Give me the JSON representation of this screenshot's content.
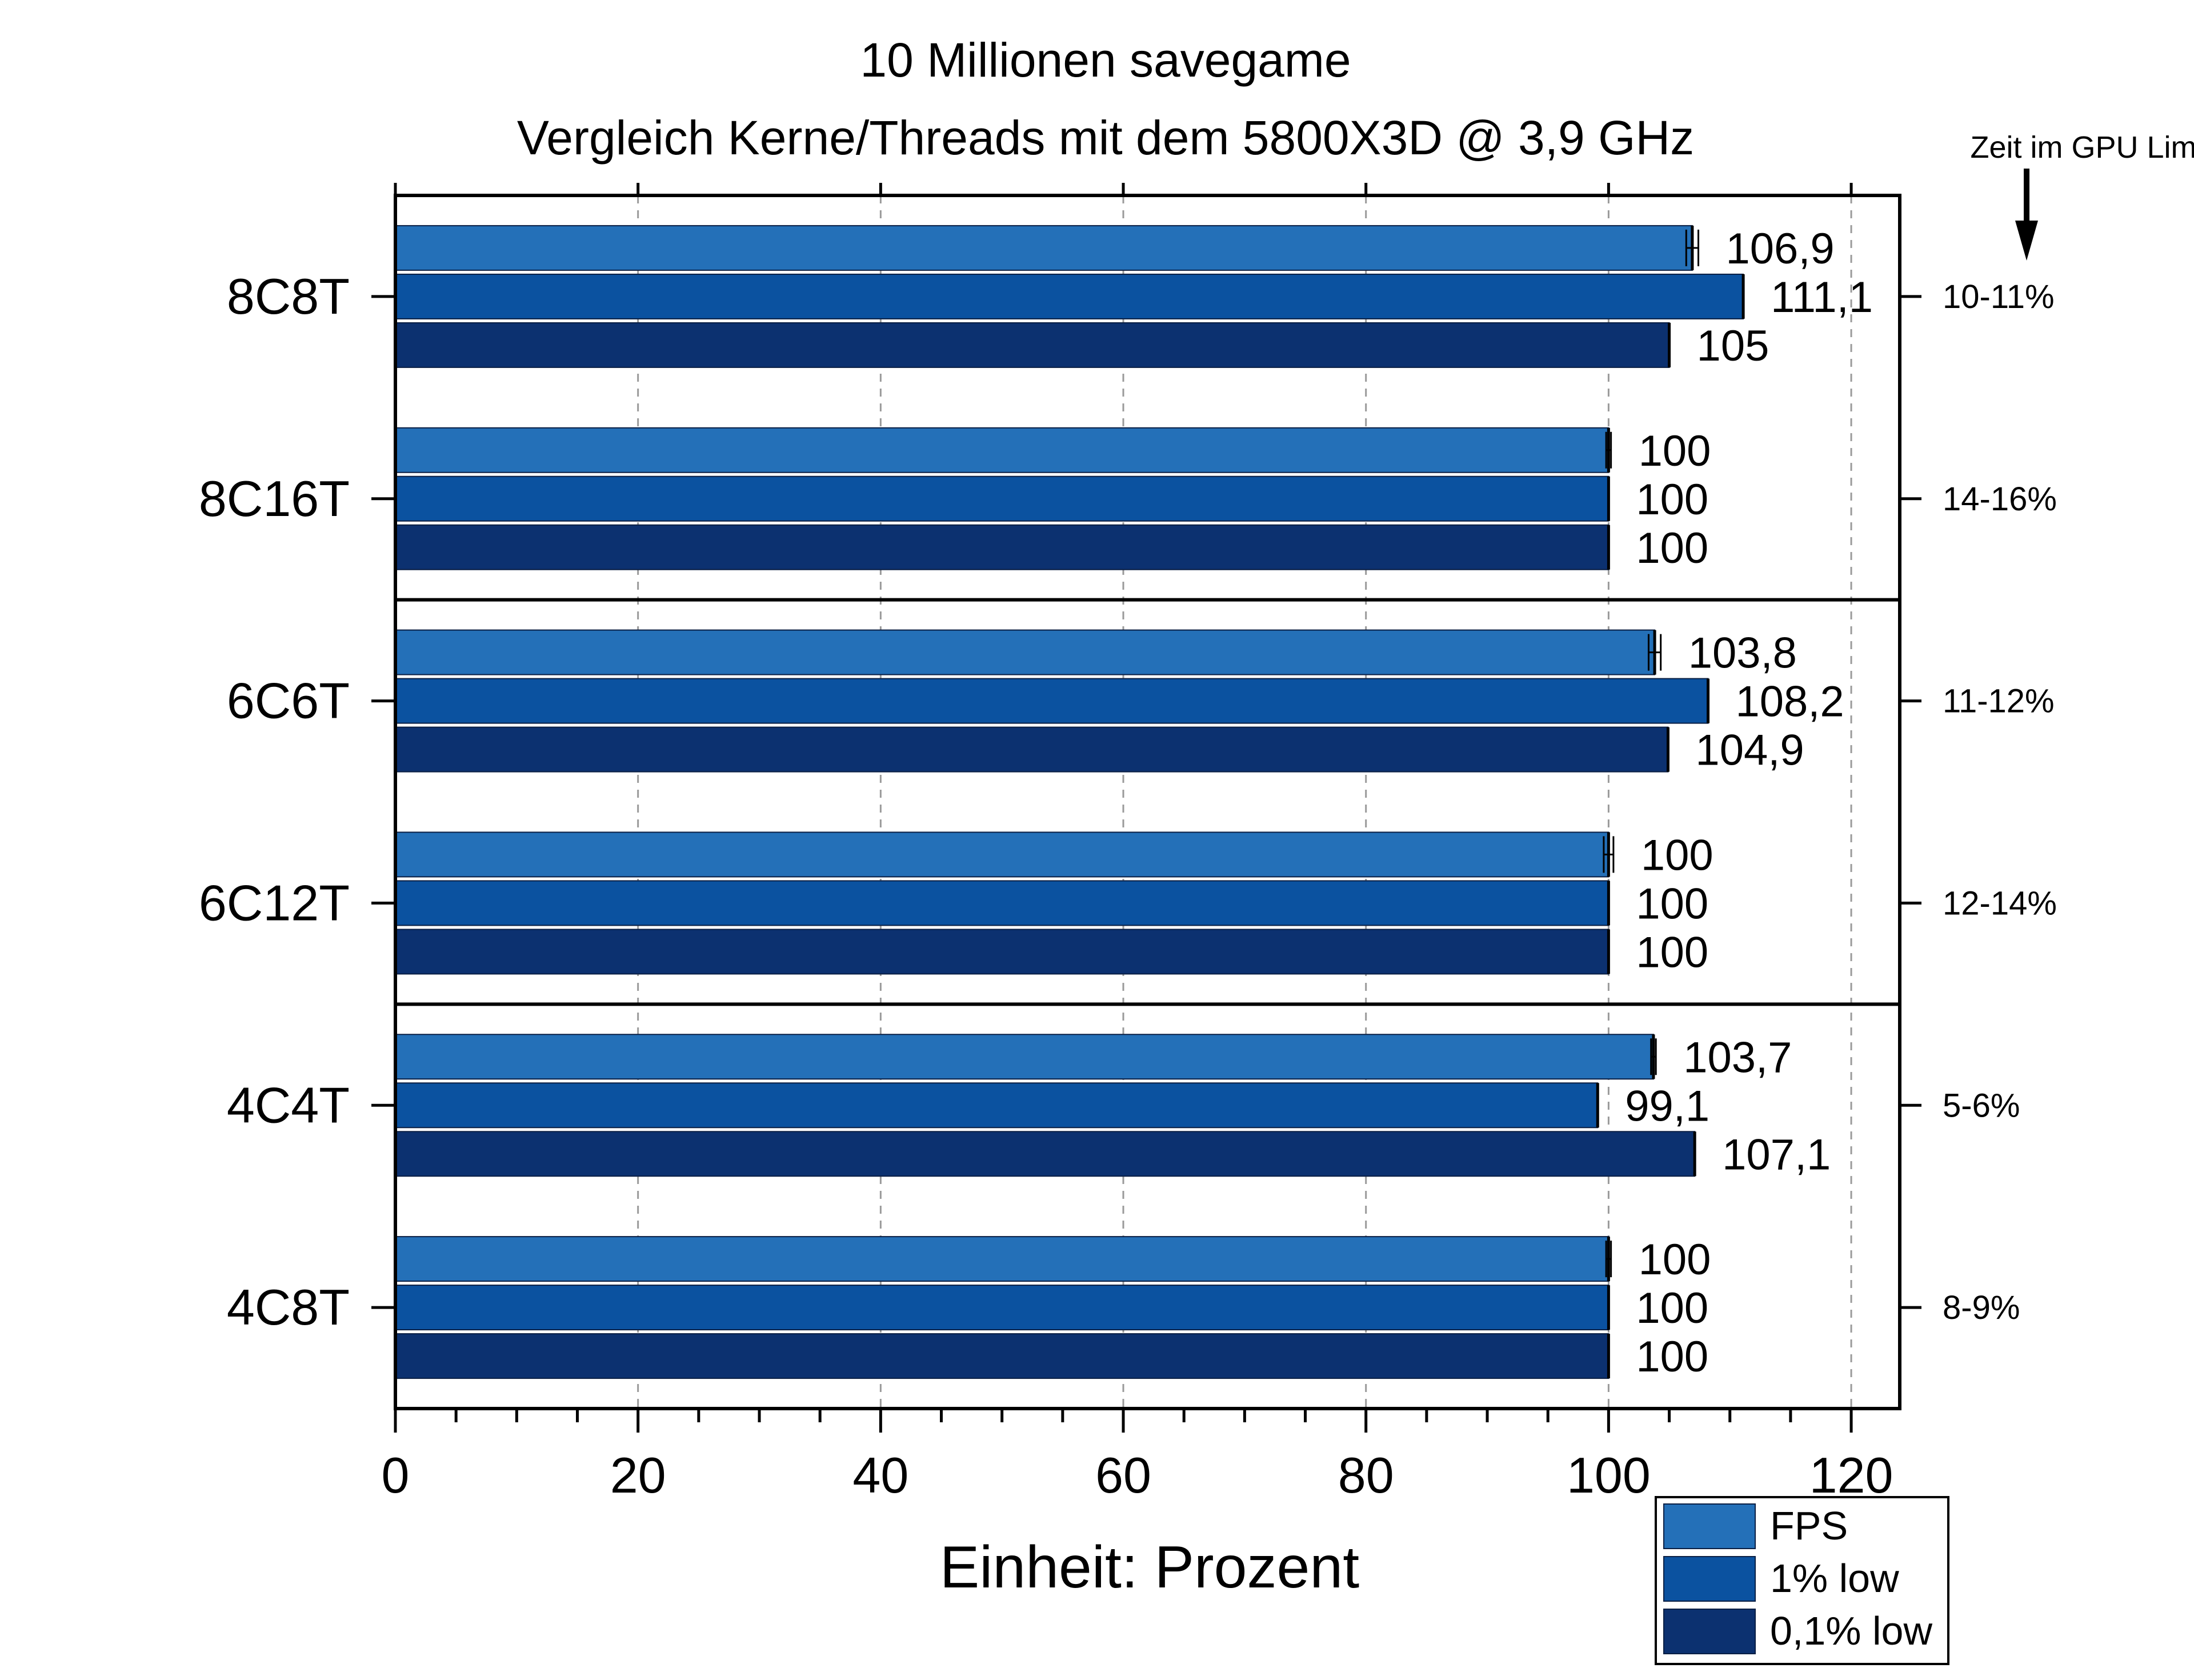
{
  "chart_data": {
    "type": "bar",
    "orientation": "horizontal",
    "title": "10 Millionen savegame",
    "subtitle": "Vergleich Kerne/Threads mit dem 5800X3D @ 3,9 GHz",
    "xlabel": "Einheit: Prozent",
    "ylabel": "",
    "xlim": [
      0,
      124
    ],
    "xticks": [
      0,
      20,
      40,
      60,
      80,
      100,
      120
    ],
    "xtick_labels": [
      "0",
      "20",
      "40",
      "60",
      "80",
      "100",
      "120"
    ],
    "grid": "vertical dashed at 20,40,60,80,100,120",
    "categories": [
      "8C8T",
      "8C16T",
      "6C6T",
      "6C12T",
      "4C4T",
      "4C8T"
    ],
    "series": [
      {
        "name": "FPS",
        "color": "#2470b8",
        "values": [
          106.9,
          100,
          103.8,
          100,
          103.7,
          100
        ],
        "labels": [
          "106,9",
          "100",
          "103,8",
          "100",
          "103,7",
          "100"
        ],
        "error": [
          0.5,
          0.2,
          0.5,
          0.4,
          0.2,
          0.2
        ]
      },
      {
        "name": "1% low",
        "color": "#0b52a0",
        "values": [
          111.1,
          100,
          108.2,
          100,
          99.1,
          100
        ],
        "labels": [
          "111,1",
          "100",
          "108,2",
          "100",
          "99,1",
          "100"
        ],
        "error": [
          0,
          0,
          0,
          0,
          0,
          0
        ]
      },
      {
        "name": "0,1% low",
        "color": "#0c3170",
        "values": [
          105,
          100,
          104.9,
          100,
          107.1,
          100
        ],
        "labels": [
          "105",
          "100",
          "104,9",
          "100",
          "107,1",
          "100"
        ],
        "error": [
          0,
          0,
          0,
          0,
          0,
          0
        ]
      }
    ],
    "right_axis": {
      "header": "Zeit im GPU Limit",
      "labels": [
        "10-11%",
        "14-16%",
        "11-12%",
        "12-14%",
        "5-6%",
        "8-9%"
      ]
    },
    "group_separators_after": [
      1,
      3
    ],
    "legend": {
      "placement": "bottom-right",
      "entries": [
        "FPS",
        "1% low",
        "0,1% low"
      ]
    }
  }
}
